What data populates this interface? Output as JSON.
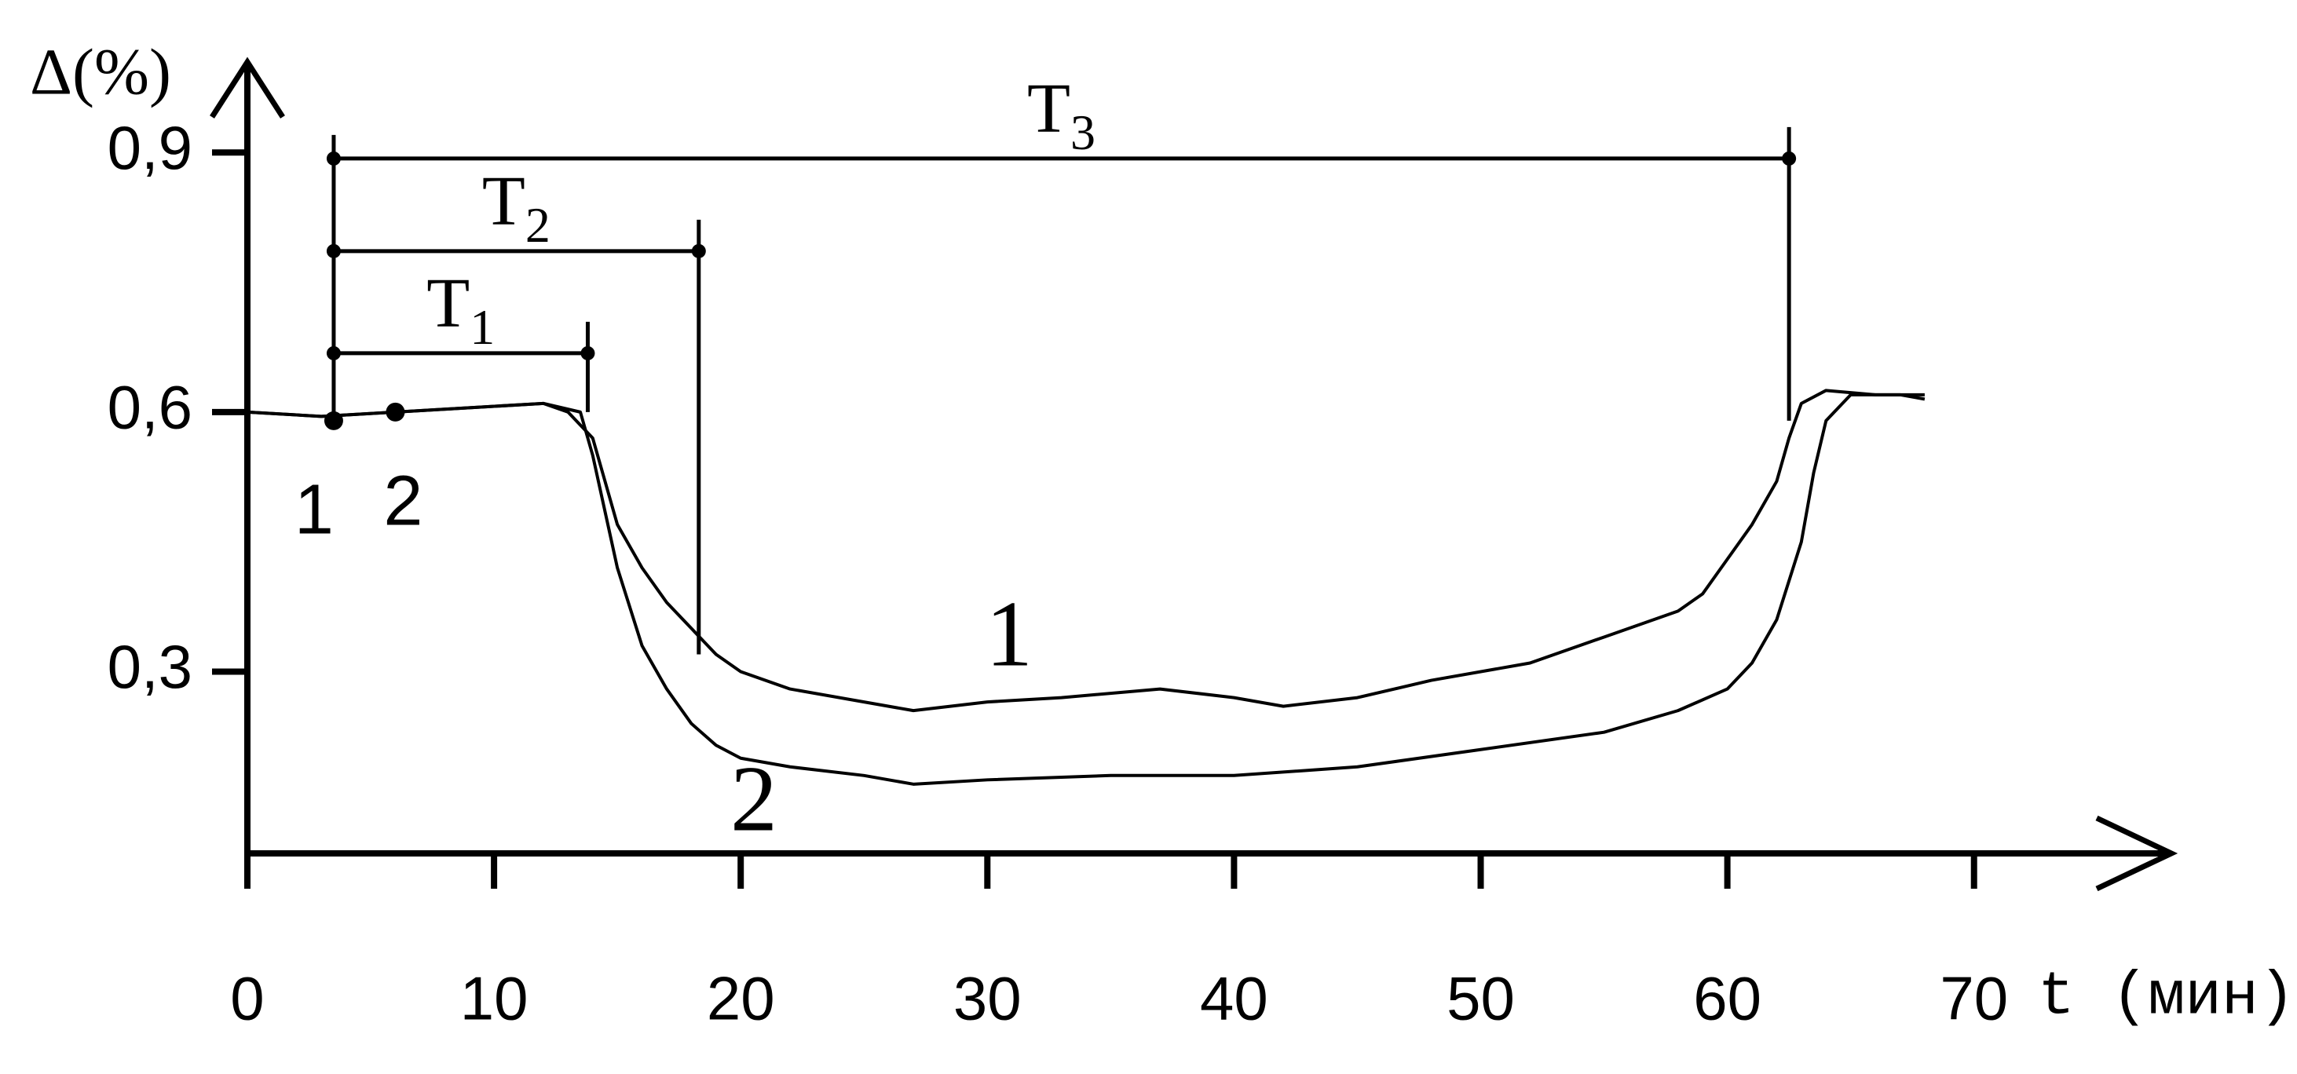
{
  "chart_data": {
    "type": "line",
    "ylabel": "Δ(%)",
    "xlabel": "t (мин)",
    "xlim": [
      0,
      78
    ],
    "ylim": [
      0.09,
      1.0
    ],
    "xticks": [
      0,
      10,
      20,
      30,
      40,
      50,
      60,
      70
    ],
    "yticks": [
      {
        "value": 0.3,
        "label": "0,3"
      },
      {
        "value": 0.6,
        "label": "0,6"
      },
      {
        "value": 0.9,
        "label": "0,9"
      }
    ],
    "series": [
      {
        "name": "1",
        "color": "#000000",
        "x": [
          0,
          3,
          6,
          9,
          12,
          13,
          14,
          15,
          16,
          17,
          18,
          19,
          20,
          22,
          25,
          27,
          30,
          33,
          37,
          40,
          42,
          45,
          48,
          52,
          55,
          58,
          59,
          60,
          61,
          62,
          62.5,
          63,
          64,
          66,
          68
        ],
        "values": [
          0.6,
          0.595,
          0.6,
          0.605,
          0.61,
          0.6,
          0.57,
          0.47,
          0.42,
          0.38,
          0.35,
          0.32,
          0.3,
          0.28,
          0.265,
          0.255,
          0.265,
          0.27,
          0.28,
          0.27,
          0.26,
          0.27,
          0.29,
          0.31,
          0.34,
          0.37,
          0.39,
          0.43,
          0.47,
          0.52,
          0.57,
          0.61,
          0.625,
          0.62,
          0.62
        ]
      },
      {
        "name": "2",
        "color": "#000000",
        "x": [
          0,
          3,
          6,
          9,
          12,
          13.5,
          14,
          15,
          16,
          17,
          18,
          19,
          20,
          22,
          25,
          27,
          30,
          35,
          40,
          45,
          50,
          55,
          58,
          60,
          61,
          62,
          63,
          63.5,
          64,
          65,
          67,
          68
        ],
        "values": [
          0.6,
          0.595,
          0.6,
          0.605,
          0.61,
          0.6,
          0.55,
          0.42,
          0.33,
          0.28,
          0.24,
          0.215,
          0.2,
          0.19,
          0.18,
          0.17,
          0.175,
          0.18,
          0.18,
          0.19,
          0.21,
          0.23,
          0.255,
          0.28,
          0.31,
          0.36,
          0.45,
          0.53,
          0.59,
          0.62,
          0.62,
          0.615
        ]
      }
    ],
    "markers": [
      {
        "label": "1",
        "x": 3.5,
        "y": 0.59
      },
      {
        "label": "2",
        "x": 6,
        "y": 0.6
      }
    ],
    "intervals": [
      {
        "name": "T",
        "index": "1",
        "x": [
          3.5,
          13.8
        ],
        "y": 0.668,
        "drop_to": 0.6
      },
      {
        "name": "T",
        "index": "2",
        "x": [
          3.5,
          18.3
        ],
        "y": 0.786,
        "drop_to": 0.32
      },
      {
        "name": "T",
        "index": "3",
        "x": [
          3.5,
          62.5
        ],
        "y": 0.893,
        "drop_to": 0.59
      }
    ]
  }
}
